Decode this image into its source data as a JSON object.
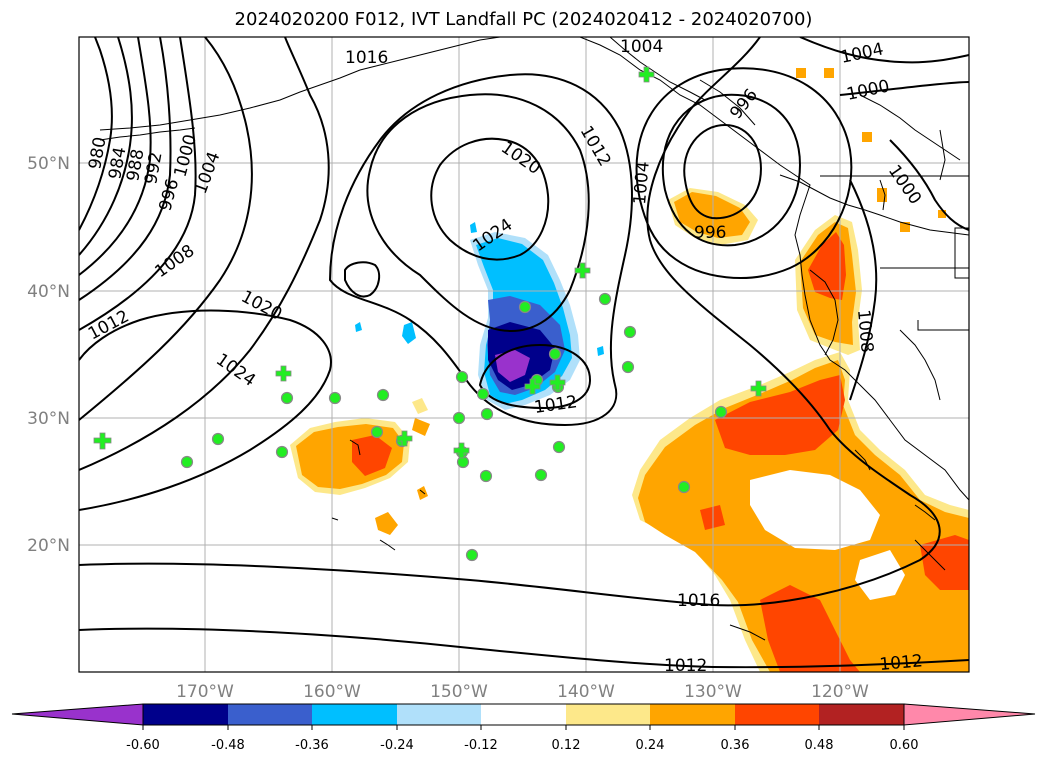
{
  "title": "2024020200 F012, IVT Landfall PC (2024020412 - 2024020700)",
  "axes": {
    "lat_labels": [
      "50°N",
      "40°N",
      "30°N",
      "20°N"
    ],
    "lon_labels": [
      "170°W",
      "160°W",
      "150°W",
      "140°W",
      "130°W",
      "120°W"
    ]
  },
  "isobar_labels": [
    "1016",
    "1004",
    "1004",
    "1000",
    "996",
    "980",
    "984",
    "988",
    "992",
    "996",
    "1000",
    "1004",
    "1012",
    "1020",
    "1004",
    "1000",
    "996",
    "1024",
    "1008",
    "1020",
    "1012",
    "1024",
    "1012",
    "1008",
    "1016",
    "1012",
    "1012"
  ],
  "colorbar": {
    "ticks": [
      "-0.60",
      "-0.48",
      "-0.36",
      "-0.24",
      "-0.12",
      "0.12",
      "0.24",
      "0.36",
      "0.48",
      "0.60"
    ],
    "colors": [
      "#9932cc",
      "#00008b",
      "#3a5fcd",
      "#00bfff",
      "#b0e0fa",
      "#ffffff",
      "#fde88a",
      "#ffa500",
      "#ff4500",
      "#b22222",
      "#ff88aa"
    ]
  }
}
